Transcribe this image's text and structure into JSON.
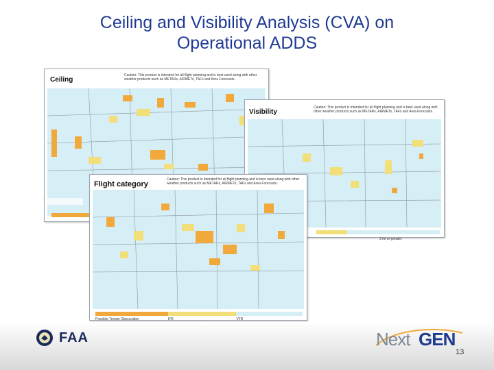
{
  "slide": {
    "title_line1": "Ceiling and Visibility Analysis (CVA) on",
    "title_line2": "Operational ADDS",
    "page_number": "13"
  },
  "panels": {
    "ceiling": {
      "label": "Ceiling",
      "caution": "Caution: This product is intended for all flight planning and is best used along with other weather products such as METARs, AIRMETs, TAFs and Area Forecasts."
    },
    "visibility": {
      "label": "Visibility",
      "caution": "Caution: This product is intended for all flight planning and is best used along with other weather products such as METARs, AIRMETs, TAFs and Area Forecasts.",
      "legend_text": "3 mi or greater"
    },
    "flight_category": {
      "label": "Flight category",
      "caution": "Caution: This product is intended for all flight planning and is best used along with other weather products such as METARs, AIRMETs, TAFs and Area Forecasts.",
      "legend": [
        "Possible Terrain Obscuration",
        "IFR",
        "VFR"
      ]
    }
  },
  "logos": {
    "faa": "FAA",
    "nextgen_next": "Next",
    "nextgen_gen": "GEN"
  },
  "colors": {
    "title": "#1f3a93",
    "map_bg": "#d6eef6",
    "yellow": "#f3df79",
    "orange": "#f2a93b",
    "land_lines": "#8c97a3"
  }
}
